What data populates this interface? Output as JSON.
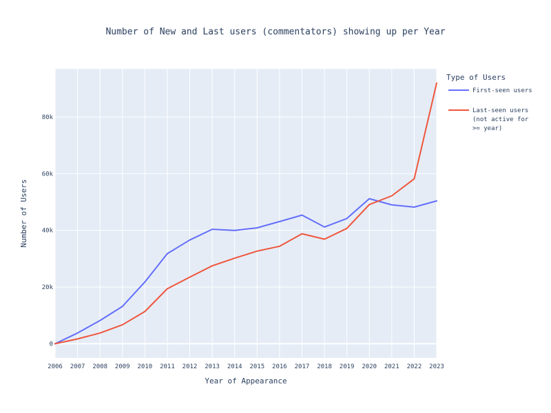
{
  "chart_data": {
    "type": "line",
    "title": "Number of New and Last users (commentators) showing up per Year",
    "xlabel": "Year of Appearance",
    "ylabel": "Number of Users",
    "x": [
      2006,
      2007,
      2008,
      2009,
      2010,
      2011,
      2012,
      2013,
      2014,
      2015,
      2016,
      2017,
      2018,
      2019,
      2020,
      2021,
      2022,
      2023
    ],
    "x_tick_labels": [
      "2006",
      "2007",
      "2008",
      "2009",
      "2010",
      "2011",
      "2012",
      "2013",
      "2014",
      "2015",
      "2016",
      "2017",
      "2018",
      "2019",
      "2020",
      "2021",
      "2022",
      "2023"
    ],
    "xlim": [
      2006,
      2023
    ],
    "ylim": [
      -5000,
      97000
    ],
    "y_ticks": [
      0,
      20000,
      40000,
      60000,
      80000
    ],
    "y_tick_labels": [
      "0",
      "20k",
      "40k",
      "60k",
      "80k"
    ],
    "grid": true,
    "legend": {
      "title": "Type of Users",
      "position": "right",
      "entries": [
        {
          "lines": [
            "First-seen users"
          ]
        },
        {
          "lines": [
            "Last-seen users",
            "(not active for",
            ">= year)"
          ]
        }
      ]
    },
    "series": [
      {
        "name": "First-seen users",
        "color": "#636efa",
        "values": [
          0,
          3800,
          8200,
          13200,
          21800,
          31800,
          36600,
          40400,
          40000,
          40900,
          43100,
          45400,
          41200,
          44200,
          51200,
          49000,
          48200,
          50400
        ]
      },
      {
        "name": "Last-seen users (not active for >= year)",
        "color": "#ef553b",
        "values": [
          0,
          1700,
          3800,
          6700,
          11400,
          19400,
          23500,
          27500,
          30200,
          32700,
          34400,
          38800,
          36900,
          40700,
          49100,
          52200,
          58200,
          92000
        ]
      }
    ]
  }
}
